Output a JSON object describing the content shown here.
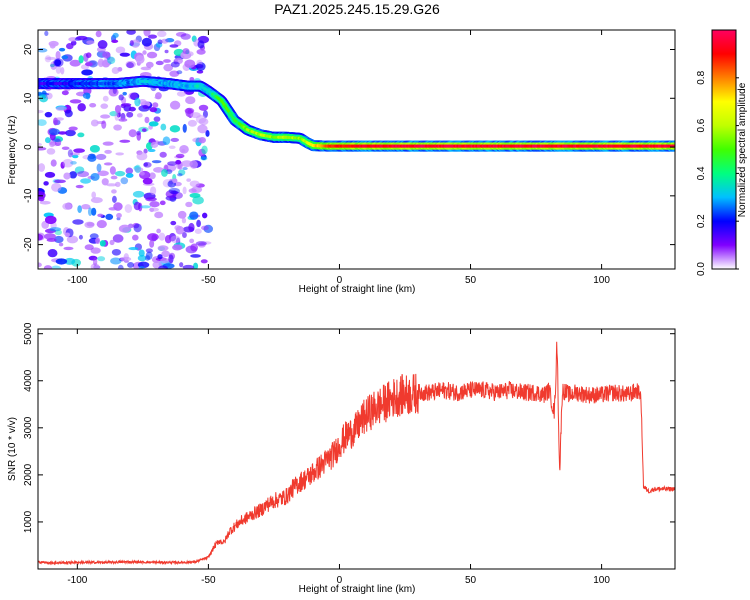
{
  "figure_title": "PAZ1.2025.245.15.29.G26",
  "chart_data": [
    {
      "type": "heatmap",
      "name": "spectrogram",
      "xlabel": "Height of straight line (km)",
      "ylabel": "Frequency (Hz)",
      "xlim": [
        -115,
        128
      ],
      "ylim": [
        -25,
        24
      ],
      "xticks": [
        -100,
        -50,
        0,
        50,
        100
      ],
      "yticks": [
        -20,
        -10,
        0,
        10,
        20
      ],
      "xtick_labels": [
        "-100",
        "-50",
        "0",
        "50",
        "100"
      ],
      "ytick_labels": [
        "-20",
        "-10",
        "0",
        "10",
        "20"
      ],
      "noise_region_x": [
        -115,
        -50
      ],
      "ridge": {
        "x": [
          -115,
          -100,
          -85,
          -75,
          -65,
          -58,
          -53,
          -50,
          -45,
          -40,
          -35,
          -30,
          -25,
          -20,
          -15,
          -12,
          -10,
          -5,
          0,
          20,
          50,
          80,
          100,
          128
        ],
        "frequency": [
          13,
          13,
          13,
          13.5,
          13,
          12.5,
          12.5,
          11.5,
          9.5,
          5.5,
          3.5,
          2.5,
          2,
          2,
          1.8,
          0.8,
          0.3,
          0.2,
          0.2,
          0.2,
          0.2,
          0.2,
          0.2,
          0.2
        ],
        "normalized_amplitude": [
          0.15,
          0.2,
          0.25,
          0.3,
          0.3,
          0.3,
          0.35,
          0.35,
          0.5,
          0.45,
          0.55,
          0.6,
          0.55,
          0.6,
          0.55,
          0.65,
          0.7,
          0.85,
          0.9,
          0.95,
          0.95,
          0.95,
          0.95,
          0.95
        ]
      },
      "grid": false
    },
    {
      "type": "colorbar",
      "label": "Normalized spectral amplitude",
      "range": [
        0,
        1
      ],
      "ticks": [
        0.0,
        0.2,
        0.4,
        0.6,
        0.8
      ],
      "tick_labels": [
        "0.0",
        "0.2",
        "0.4",
        "0.6",
        "0.8"
      ],
      "colormap": [
        "#ffffff",
        "#8000ff",
        "#0000ff",
        "#00c0ff",
        "#00ff80",
        "#40ff00",
        "#c0ff00",
        "#ffff00",
        "#ff8000",
        "#ff0000",
        "#ff0060"
      ]
    },
    {
      "type": "line",
      "name": "snr",
      "xlabel": "Height of straight line (km)",
      "ylabel": "SNR (10 * v/v)",
      "xlim": [
        -115,
        128
      ],
      "ylim": [
        0,
        5100
      ],
      "xticks": [
        -100,
        -50,
        0,
        50,
        100
      ],
      "yticks": [
        1000,
        2000,
        3000,
        4000,
        5000
      ],
      "xtick_labels": [
        "-100",
        "-50",
        "0",
        "50",
        "100"
      ],
      "ytick_labels": [
        "1000",
        "2000",
        "3000",
        "4000",
        "5000"
      ],
      "color": "#f03a2e",
      "x": [
        -115,
        -110,
        -100,
        -90,
        -80,
        -70,
        -60,
        -55,
        -50,
        -48,
        -46,
        -44,
        -42,
        -40,
        -38,
        -35,
        -32,
        -30,
        -28,
        -25,
        -22,
        -20,
        -18,
        -15,
        -12,
        -10,
        -8,
        -5,
        -2,
        0,
        3,
        6,
        9,
        12,
        15,
        18,
        21,
        24,
        27,
        30,
        35,
        40,
        45,
        50,
        55,
        60,
        65,
        70,
        75,
        78,
        80,
        82,
        83,
        84,
        85,
        88,
        90,
        95,
        100,
        105,
        110,
        114,
        115,
        116,
        118,
        120,
        125,
        128
      ],
      "y": [
        150,
        130,
        140,
        140,
        150,
        140,
        140,
        150,
        250,
        450,
        600,
        560,
        800,
        900,
        1000,
        1100,
        1200,
        1250,
        1350,
        1450,
        1500,
        1550,
        1700,
        1850,
        1950,
        2050,
        2150,
        2300,
        2450,
        2650,
        2850,
        2950,
        3200,
        3350,
        3450,
        3550,
        3650,
        3700,
        3700,
        3750,
        3750,
        3800,
        3750,
        3800,
        3800,
        3750,
        3800,
        3750,
        3750,
        3700,
        3800,
        3300,
        4800,
        2000,
        3800,
        3700,
        3750,
        3700,
        3700,
        3750,
        3700,
        3800,
        3650,
        1750,
        1650,
        1700,
        1700,
        1700
      ],
      "grid": false
    }
  ]
}
